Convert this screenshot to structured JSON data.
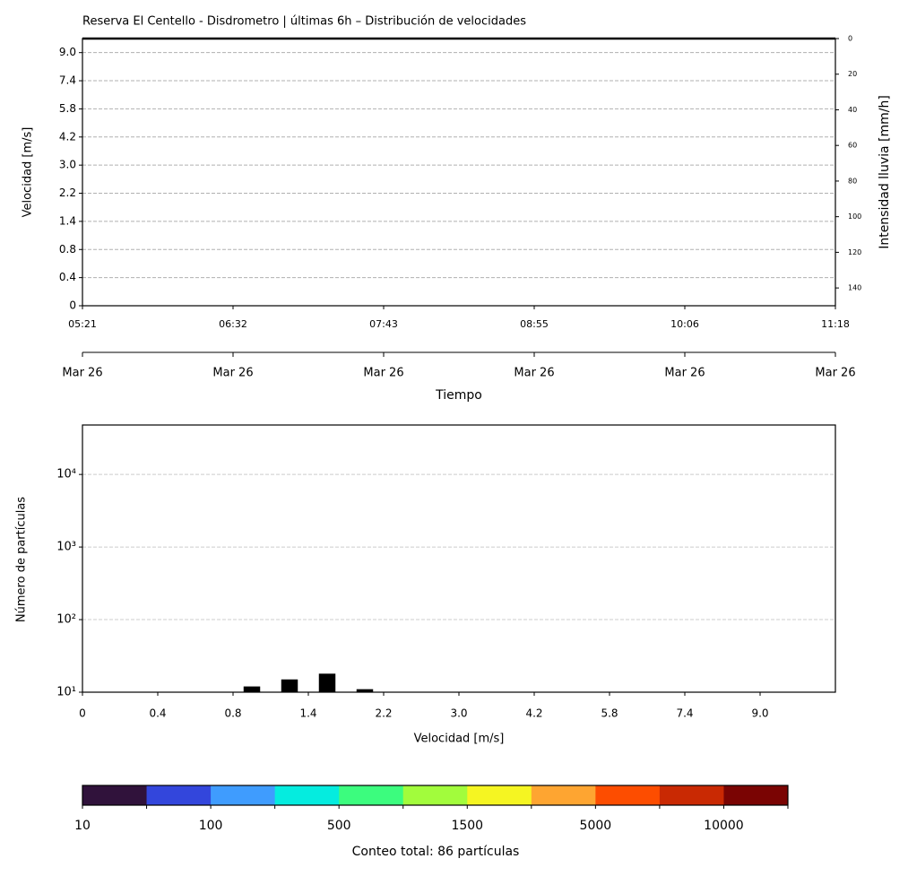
{
  "chart_data": [
    {
      "type": "timeline",
      "title": "Reserva El Centello - Disdrometro | últimas 6h – Distribución de velocidades",
      "ylabel": "Velocidad [m/s]",
      "y2label": "Intensidad lluvia [mm/h]",
      "xlabel": "Tiempo",
      "ylim": [
        0,
        9.5
      ],
      "yticks": [
        {
          "value": 0,
          "label": "0"
        },
        {
          "value": 1,
          "label": "0.4"
        },
        {
          "value": 2,
          "label": "0.8"
        },
        {
          "value": 3,
          "label": "1.4"
        },
        {
          "value": 4,
          "label": "2.2"
        },
        {
          "value": 5,
          "label": "3.0"
        },
        {
          "value": 6,
          "label": "4.2"
        },
        {
          "value": 7,
          "label": "5.8"
        },
        {
          "value": 8,
          "label": "7.4"
        },
        {
          "value": 9,
          "label": "9.0"
        }
      ],
      "y2lim": [
        0,
        150
      ],
      "y2ticks": [
        0,
        20,
        40,
        60,
        80,
        100,
        120,
        140
      ],
      "y2_inverted": true,
      "xlim": [
        0,
        5
      ],
      "xticks": [
        {
          "value": 0,
          "label": "05:21"
        },
        {
          "value": 1,
          "label": "06:32"
        },
        {
          "value": 2,
          "label": "07:43"
        },
        {
          "value": 3,
          "label": "08:55"
        },
        {
          "value": 4,
          "label": "10:06"
        },
        {
          "value": 5,
          "label": "11:18"
        }
      ],
      "date_labels": [
        "Mar 26",
        "Mar 26",
        "Mar 26",
        "Mar 26",
        "Mar 26",
        "Mar 26"
      ],
      "grid": true
    },
    {
      "type": "bar",
      "ylabel": "Número de partículas",
      "xlabel": "Velocidad [m/s]",
      "log_y": true,
      "ylim": [
        10,
        48000
      ],
      "yticks": [
        {
          "value": 10,
          "label": "10¹"
        },
        {
          "value": 100,
          "label": "10²"
        },
        {
          "value": 1000,
          "label": "10³"
        },
        {
          "value": 10000,
          "label": "10⁴"
        }
      ],
      "xlim": [
        0,
        10
      ],
      "xticks": [
        {
          "value": 0,
          "label": "0"
        },
        {
          "value": 1,
          "label": "0.4"
        },
        {
          "value": 2,
          "label": "0.8"
        },
        {
          "value": 3,
          "label": "1.4"
        },
        {
          "value": 4,
          "label": "2.2"
        },
        {
          "value": 5,
          "label": "3.0"
        },
        {
          "value": 6,
          "label": "4.2"
        },
        {
          "value": 7,
          "label": "5.8"
        },
        {
          "value": 8,
          "label": "7.4"
        },
        {
          "value": 9,
          "label": "9.0"
        }
      ],
      "x": [
        2.25,
        2.75,
        3.25,
        3.75
      ],
      "values": [
        12,
        15,
        18,
        11
      ],
      "color": "#000000",
      "grid": true
    },
    {
      "type": "colorbar",
      "label": "Conteo total: 86 partículas",
      "colors": [
        "#30123b",
        "#3346dc",
        "#3f9cfe",
        "#05ecdf",
        "#3cfc7e",
        "#a2fc3c",
        "#f5f522",
        "#fea531",
        "#fd4d00",
        "#c92903",
        "#7a0403"
      ],
      "ticks": [
        10,
        null,
        100,
        null,
        500,
        null,
        1500,
        null,
        5000,
        null,
        10000,
        null
      ]
    }
  ]
}
